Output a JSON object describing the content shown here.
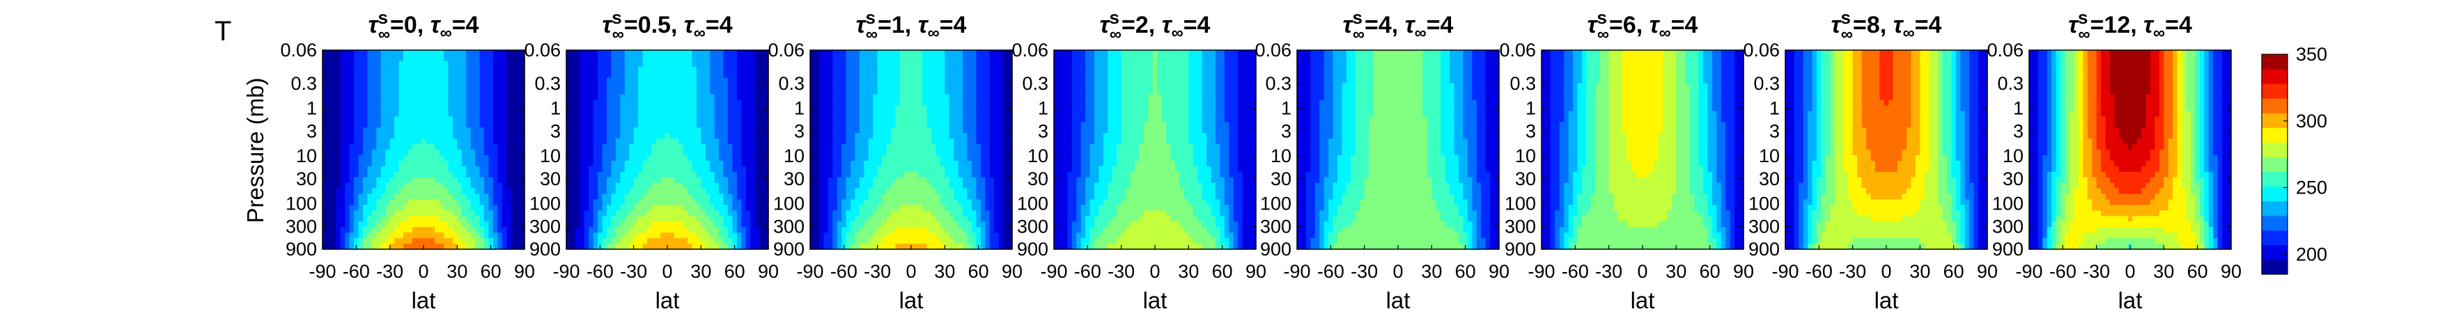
{
  "figure": {
    "panel_letter": "T",
    "variable_symbol": "τ",
    "superscript": "s",
    "subscript": "∞",
    "title_separator": ", ",
    "equals": "="
  },
  "chart_data": {
    "type": "heatmap",
    "ylabel": "Pressure (mb)",
    "xlabel": "lat",
    "x_ticks": [
      -90,
      -60,
      -30,
      0,
      30,
      60,
      90
    ],
    "x_tick_labels": [
      "-90",
      "-60",
      "-30",
      "0",
      "30",
      "60",
      "90"
    ],
    "y_ticks": [
      0.06,
      0.3,
      1,
      3,
      10,
      30,
      100,
      300,
      900
    ],
    "y_tick_labels": [
      "0.06",
      "0.3",
      "1",
      "3",
      "10",
      "30",
      "100",
      "300",
      "900"
    ],
    "y_scale": "log",
    "y_reversed": true,
    "xlim": [
      -90,
      90
    ],
    "ylim": [
      0.06,
      900
    ],
    "colorbar": {
      "range": [
        185,
        350
      ],
      "ticks": [
        200,
        250,
        300,
        350
      ],
      "tick_labels": [
        "200",
        "250",
        "300",
        "350"
      ],
      "colormap": "jet",
      "levels": 15
    },
    "panels": [
      {
        "tau_s": "0",
        "tau_inf": "4",
        "upper_T": 245,
        "surface_T": 318,
        "pole_T": 185
      },
      {
        "tau_s": "0.5",
        "tau_inf": "4",
        "upper_T": 247,
        "surface_T": 308,
        "pole_T": 188
      },
      {
        "tau_s": "1",
        "tau_inf": "4",
        "upper_T": 252,
        "surface_T": 300,
        "pole_T": 192
      },
      {
        "tau_s": "2",
        "tau_inf": "4",
        "upper_T": 262,
        "surface_T": 285,
        "pole_T": 196
      },
      {
        "tau_s": "4",
        "tau_inf": "4",
        "upper_T": 270,
        "surface_T": 272,
        "pole_T": 200
      },
      {
        "tau_s": "6",
        "tau_inf": "4",
        "upper_T": 290,
        "surface_T": 265,
        "pole_T": 200
      },
      {
        "tau_s": "8",
        "tau_inf": "4",
        "upper_T": 318,
        "surface_T": 262,
        "pole_T": 198
      },
      {
        "tau_s": "12",
        "tau_inf": "4",
        "upper_T": 348,
        "surface_T": 258,
        "pole_T": 195
      }
    ]
  }
}
